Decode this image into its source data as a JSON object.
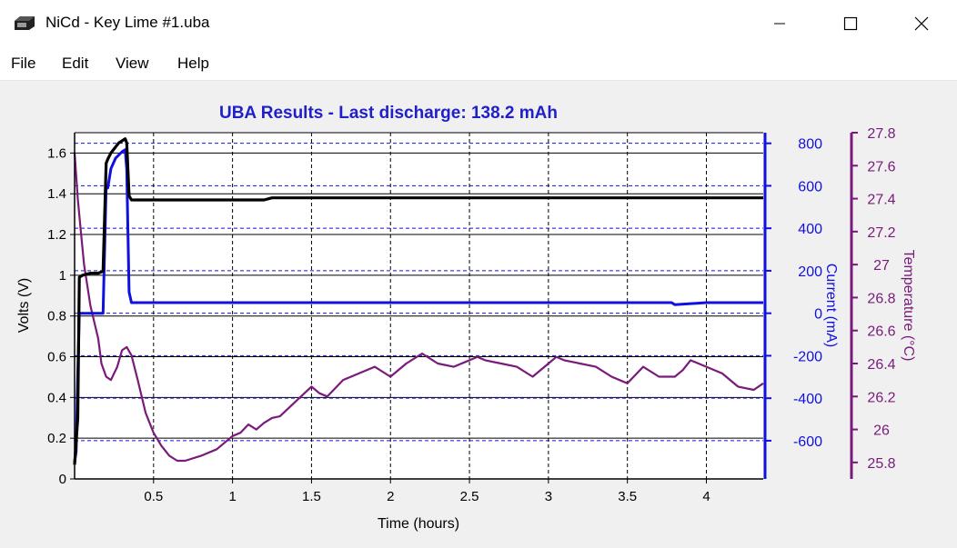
{
  "window": {
    "title": "NiCd - Key Lime #1.uba",
    "icon": "battery-analyzer-icon",
    "controls": [
      "minimize-icon",
      "maximize-icon",
      "close-icon"
    ]
  },
  "menu": {
    "file": "File",
    "edit": "Edit",
    "view": "View",
    "help": "Help"
  },
  "colors": {
    "title": "#2020c8",
    "voltage": "#000000",
    "current": "#1010e0",
    "temperature": "#7a1a7a"
  },
  "chart_data": {
    "type": "line",
    "title": "UBA Results - Last discharge: 138.2 mAh",
    "xlabel": "Time (hours)",
    "ylabel": "Volts (V)",
    "y2label": "Current (mA)",
    "y3label": "Temperature (°C)",
    "xlim": [
      0,
      4.36
    ],
    "ylim": [
      0,
      1.7
    ],
    "y2lim": [
      -780,
      850
    ],
    "y3lim": [
      25.7,
      27.8
    ],
    "x_ticks": [
      "0.5",
      "1",
      "1.5",
      "2",
      "2.5",
      "3",
      "3.5",
      "4"
    ],
    "x_tick_values": [
      0.5,
      1,
      1.5,
      2,
      2.5,
      3,
      3.5,
      4
    ],
    "y_ticks": [
      "0",
      "0.2",
      "0.4",
      "0.6",
      "0.8",
      "1",
      "1.2",
      "1.4",
      "1.6"
    ],
    "y_tick_values": [
      0,
      0.2,
      0.4,
      0.6,
      0.8,
      1,
      1.2,
      1.4,
      1.6
    ],
    "y2_ticks": [
      "-600",
      "-400",
      "-200",
      "0",
      "200",
      "400",
      "600",
      "800"
    ],
    "y2_tick_values": [
      -600,
      -400,
      -200,
      0,
      200,
      400,
      600,
      800
    ],
    "y3_ticks": [
      "25.8",
      "26",
      "26.2",
      "26.4",
      "26.6",
      "26.8",
      "27",
      "27.2",
      "27.4",
      "27.6",
      "27.8"
    ],
    "y3_tick_values": [
      25.8,
      26,
      26.2,
      26.4,
      26.6,
      26.8,
      27,
      27.2,
      27.4,
      27.6,
      27.8
    ],
    "grid": true,
    "series": [
      {
        "axis": "volts",
        "x": [
          0.0,
          0.02,
          0.03,
          0.05,
          0.1,
          0.15,
          0.18,
          0.2,
          0.21,
          0.23,
          0.26,
          0.28,
          0.3,
          0.32,
          0.33,
          0.345,
          0.36,
          1.0,
          1.2,
          1.25,
          2.0,
          3.0,
          4.0,
          4.36
        ],
        "y": [
          0.07,
          0.3,
          0.99,
          1.0,
          1.01,
          1.01,
          1.02,
          1.55,
          1.57,
          1.6,
          1.63,
          1.65,
          1.66,
          1.67,
          1.65,
          1.39,
          1.37,
          1.37,
          1.37,
          1.38,
          1.38,
          1.38,
          1.38,
          1.38
        ]
      },
      {
        "axis": "current",
        "x": [
          0.0,
          0.01,
          0.02,
          0.03,
          0.05,
          0.1,
          0.15,
          0.18,
          0.2,
          0.21,
          0.23,
          0.26,
          0.3,
          0.32,
          0.33,
          0.345,
          0.36,
          0.4,
          1.0,
          2.0,
          3.0,
          3.78,
          3.8,
          4.0,
          4.36
        ],
        "y": [
          -700,
          -650,
          -280,
          0,
          0,
          0,
          0,
          0,
          600,
          590,
          680,
          730,
          760,
          770,
          680,
          100,
          50,
          50,
          50,
          50,
          50,
          50,
          40,
          50,
          50
        ]
      },
      {
        "axis": "temperature",
        "x": [
          0.0,
          0.02,
          0.04,
          0.06,
          0.1,
          0.15,
          0.17,
          0.2,
          0.23,
          0.27,
          0.3,
          0.33,
          0.36,
          0.4,
          0.45,
          0.5,
          0.55,
          0.6,
          0.65,
          0.7,
          0.8,
          0.9,
          1.0,
          1.05,
          1.1,
          1.15,
          1.2,
          1.25,
          1.3,
          1.4,
          1.5,
          1.55,
          1.6,
          1.7,
          1.8,
          1.9,
          2.0,
          2.1,
          2.2,
          2.3,
          2.4,
          2.5,
          2.55,
          2.6,
          2.7,
          2.8,
          2.9,
          3.0,
          3.05,
          3.1,
          3.2,
          3.3,
          3.4,
          3.5,
          3.6,
          3.7,
          3.8,
          3.85,
          3.9,
          4.0,
          4.1,
          4.2,
          4.3,
          4.36
        ],
        "y": [
          27.68,
          27.4,
          27.2,
          27.0,
          26.75,
          26.55,
          26.4,
          26.32,
          26.3,
          26.38,
          26.48,
          26.5,
          26.45,
          26.3,
          26.1,
          25.98,
          25.9,
          25.84,
          25.81,
          25.81,
          25.84,
          25.88,
          25.96,
          25.98,
          26.03,
          26.0,
          26.04,
          26.07,
          26.08,
          26.17,
          26.26,
          26.22,
          26.2,
          26.3,
          26.34,
          26.38,
          26.32,
          26.4,
          26.46,
          26.4,
          26.38,
          26.42,
          26.44,
          26.42,
          26.4,
          26.38,
          26.32,
          26.4,
          26.44,
          26.42,
          26.4,
          26.38,
          26.32,
          26.28,
          26.38,
          26.32,
          26.32,
          26.36,
          26.42,
          26.38,
          26.34,
          26.26,
          26.24,
          26.28
        ]
      }
    ]
  }
}
